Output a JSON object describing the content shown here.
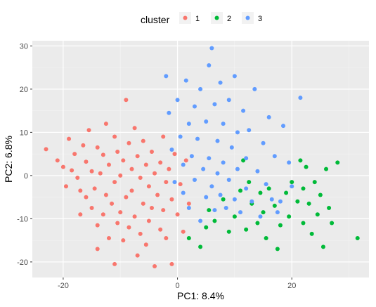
{
  "chart_data": {
    "type": "scatter",
    "title": "",
    "xlabel": "PC1: 8.4%",
    "ylabel": "PC2: 6.8%",
    "xlim": [
      -25.4,
      33.5
    ],
    "ylim": [
      -23.6,
      31.2
    ],
    "x_ticks": [
      -20,
      0,
      20
    ],
    "y_ticks": [
      -20,
      -10,
      0,
      10,
      20,
      30
    ],
    "grid": true,
    "legend": {
      "title": "cluster",
      "placement": "top",
      "entries": [
        {
          "label": "1",
          "color": "#F8766D"
        },
        {
          "label": "2",
          "color": "#00BA38"
        },
        {
          "label": "3",
          "color": "#619CFF"
        }
      ]
    },
    "series": [
      {
        "name": "1",
        "color": "#F8766D",
        "points": [
          [
            -23,
            6.1
          ],
          [
            -21,
            3.5
          ],
          [
            -20,
            2.0
          ],
          [
            -19.5,
            -2.5
          ],
          [
            -19,
            8.5
          ],
          [
            -18.5,
            1.2
          ],
          [
            -18,
            5.0
          ],
          [
            -17.5,
            -0.5
          ],
          [
            -17,
            -3.5
          ],
          [
            -17,
            -9.0
          ],
          [
            -16.5,
            7.0
          ],
          [
            -16,
            3.2
          ],
          [
            -16,
            -5.0
          ],
          [
            -15.5,
            10.5
          ],
          [
            -15,
            1.0
          ],
          [
            -15,
            -7.5
          ],
          [
            -14.5,
            -3.0
          ],
          [
            -14,
            6.5
          ],
          [
            -14,
            -11.5
          ],
          [
            -14,
            -17.0
          ],
          [
            -13.5,
            0.5
          ],
          [
            -13,
            4.8
          ],
          [
            -13,
            -9.0
          ],
          [
            -12.5,
            12.0
          ],
          [
            -12.5,
            -4.5
          ],
          [
            -12,
            -14.5
          ],
          [
            -12,
            2.5
          ],
          [
            -11.5,
            -6.5
          ],
          [
            -11,
            9.0
          ],
          [
            -11,
            -20.5
          ],
          [
            -11,
            -1.5
          ],
          [
            -10.5,
            5.5
          ],
          [
            -10.5,
            -11.0
          ],
          [
            -10,
            0.0
          ],
          [
            -10,
            -8.5
          ],
          [
            -9.5,
            3.5
          ],
          [
            -9.5,
            -15.0
          ],
          [
            -9,
            17.5
          ],
          [
            -9,
            -5.0
          ],
          [
            -8.5,
            7.5
          ],
          [
            -8.5,
            -12.0
          ],
          [
            -8,
            1.5
          ],
          [
            -8,
            -3.5
          ],
          [
            -7.5,
            11.0
          ],
          [
            -7.5,
            -9.5
          ],
          [
            -7,
            4.5
          ],
          [
            -7,
            -18.5
          ],
          [
            -6.5,
            -0.5
          ],
          [
            -6.5,
            -13.5
          ],
          [
            -6,
            8.0
          ],
          [
            -6,
            -6.5
          ],
          [
            -5.5,
            2.5
          ],
          [
            -5.5,
            -16.0
          ],
          [
            -5,
            -2.5
          ],
          [
            -5,
            -10.5
          ],
          [
            -4.5,
            5.5
          ],
          [
            -4.5,
            -7.5
          ],
          [
            -4,
            0.5
          ],
          [
            -4,
            -21.0
          ],
          [
            -3.5,
            -4.5
          ],
          [
            -3,
            3.0
          ],
          [
            -3,
            -12.5
          ],
          [
            -2.5,
            9.0
          ],
          [
            -2.5,
            -8.0
          ],
          [
            -2,
            -1.5
          ],
          [
            -2,
            -14.5
          ],
          [
            -1.5,
            1.5
          ],
          [
            -1,
            -5.5
          ],
          [
            -1,
            -20.5
          ],
          [
            -0.5,
            5.0
          ],
          [
            0,
            -9.0
          ],
          [
            0.5,
            -2.0
          ],
          [
            1,
            -13.0
          ],
          [
            1.5,
            3.5
          ],
          [
            2,
            -6.5
          ]
        ]
      },
      {
        "name": "2",
        "color": "#00BA38",
        "points": [
          [
            2,
            -14.5
          ],
          [
            4,
            -16.5
          ],
          [
            5,
            -12.0
          ],
          [
            5.5,
            -8.0
          ],
          [
            6.5,
            -10.5
          ],
          [
            8,
            -5.5
          ],
          [
            9,
            -13.0
          ],
          [
            10,
            -9.5
          ],
          [
            11,
            -3.5
          ],
          [
            11.5,
            3.5
          ],
          [
            12,
            -12.5
          ],
          [
            12.5,
            -1.5
          ],
          [
            13,
            -6.5
          ],
          [
            14,
            -11.0
          ],
          [
            14.5,
            -4.0
          ],
          [
            15,
            -8.5
          ],
          [
            15.5,
            -14.5
          ],
          [
            16,
            -3.0
          ],
          [
            17,
            -7.0
          ],
          [
            17.5,
            -17.0
          ],
          [
            18,
            -11.5
          ],
          [
            19,
            -4.0
          ],
          [
            19.5,
            -9.5
          ],
          [
            20,
            -1.5
          ],
          [
            21,
            -6.0
          ],
          [
            21.5,
            3.5
          ],
          [
            22,
            -3.0
          ],
          [
            22,
            -11.0
          ],
          [
            22.5,
            2.0
          ],
          [
            23,
            -6.5
          ],
          [
            23.5,
            -13.5
          ],
          [
            24,
            -1.5
          ],
          [
            24.5,
            -9.0
          ],
          [
            25,
            -4.5
          ],
          [
            25.5,
            -16.5
          ],
          [
            26,
            1.5
          ],
          [
            26.5,
            -7.5
          ],
          [
            27,
            -11.0
          ],
          [
            28,
            3.0
          ],
          [
            31.5,
            -14.5
          ]
        ]
      },
      {
        "name": "3",
        "color": "#619CFF",
        "points": [
          [
            -2,
            23.0
          ],
          [
            -1.5,
            14.5
          ],
          [
            -1,
            6.0
          ],
          [
            -0.5,
            -1.5
          ],
          [
            0,
            17.5
          ],
          [
            0.5,
            9.0
          ],
          [
            1,
            -4.0
          ],
          [
            1,
            2.5
          ],
          [
            1.5,
            22.0
          ],
          [
            2,
            12.0
          ],
          [
            2,
            -7.5
          ],
          [
            2.5,
            4.5
          ],
          [
            3,
            16.0
          ],
          [
            3,
            -1.0
          ],
          [
            3.5,
            8.5
          ],
          [
            4,
            -10.5
          ],
          [
            4,
            20.0
          ],
          [
            4.5,
            1.5
          ],
          [
            5,
            12.5
          ],
          [
            5,
            -5.0
          ],
          [
            5.5,
            25.5
          ],
          [
            5.5,
            4.0
          ],
          [
            6,
            29.5
          ],
          [
            6,
            -2.5
          ],
          [
            6.5,
            16.5
          ],
          [
            6.5,
            -8.0
          ],
          [
            7,
            8.0
          ],
          [
            7,
            0.5
          ],
          [
            7.5,
            21.5
          ],
          [
            7.5,
            -4.5
          ],
          [
            8,
            12.0
          ],
          [
            8,
            3.0
          ],
          [
            8.5,
            -7.5
          ],
          [
            9,
            17.5
          ],
          [
            9,
            -1.0
          ],
          [
            9.5,
            6.5
          ],
          [
            10,
            23.0
          ],
          [
            10,
            -5.5
          ],
          [
            10.5,
            10.0
          ],
          [
            10.5,
            1.5
          ],
          [
            11,
            -8.5
          ],
          [
            11.5,
            15.0
          ],
          [
            12,
            4.0
          ],
          [
            12,
            -3.0
          ],
          [
            12.5,
            10.5
          ],
          [
            13,
            -6.0
          ],
          [
            13.5,
            20.0
          ],
          [
            14,
            1.0
          ],
          [
            14.5,
            -9.5
          ],
          [
            15,
            7.5
          ],
          [
            15.5,
            -2.0
          ],
          [
            16,
            13.5
          ],
          [
            16.5,
            -5.5
          ],
          [
            17,
            4.5
          ],
          [
            17.5,
            -8.5
          ],
          [
            18.5,
            11.5
          ],
          [
            19.5,
            3.0
          ],
          [
            21.5,
            18.0
          ],
          [
            20,
            -2.5
          ],
          [
            18,
            -6.0
          ]
        ]
      }
    ]
  }
}
